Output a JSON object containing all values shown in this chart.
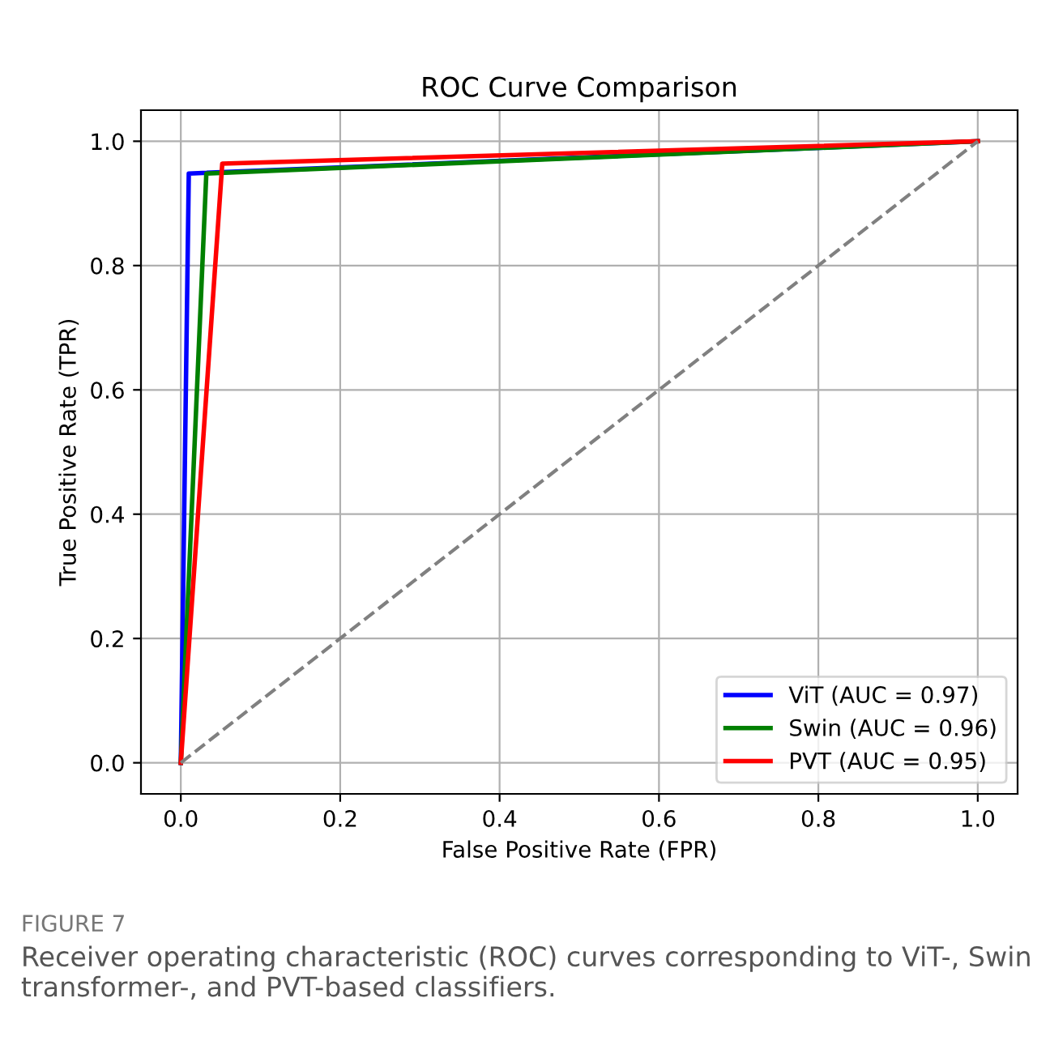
{
  "chart_data": {
    "type": "line",
    "title": "ROC Curve Comparison",
    "xlabel": "False Positive Rate (FPR)",
    "ylabel": "True Positive Rate (TPR)",
    "series": [
      {
        "name": "ViT (AUC = 0.97)",
        "color": "#0000ff",
        "x": [
          0,
          0.01,
          1
        ],
        "values": [
          0,
          0.948,
          1
        ]
      },
      {
        "name": "Swin (AUC = 0.96)",
        "color": "#008000",
        "x": [
          0,
          0.032,
          1
        ],
        "values": [
          0,
          0.948,
          1
        ]
      },
      {
        "name": "PVT (AUC = 0.95)",
        "color": "#ff0000",
        "x": [
          0,
          0.052,
          1
        ],
        "values": [
          0,
          0.964,
          1
        ]
      },
      {
        "color": "#808080",
        "line_style": "dashed",
        "x": [
          0,
          1
        ],
        "values": [
          0,
          1
        ]
      }
    ],
    "xlim": [
      -0.05,
      1.05
    ],
    "ylim": [
      -0.05,
      1.05
    ],
    "xticks": [
      {
        "value": 0,
        "label": "0.0"
      },
      0.2,
      0.4,
      0.6,
      0.8,
      {
        "value": 1,
        "label": "1.0"
      }
    ],
    "yticks": [
      {
        "value": 0,
        "label": "0.0"
      },
      0.2,
      0.4,
      0.6,
      0.8,
      {
        "value": 1,
        "label": "1.0"
      }
    ],
    "grid": true,
    "legend": "bottom right",
    "annotations": [
      "FIGURE 7",
      "Receiver operating characteristic (ROC) curves corresponding to ViT-, Swin transformer-, and PVT-based classifiers."
    ]
  }
}
